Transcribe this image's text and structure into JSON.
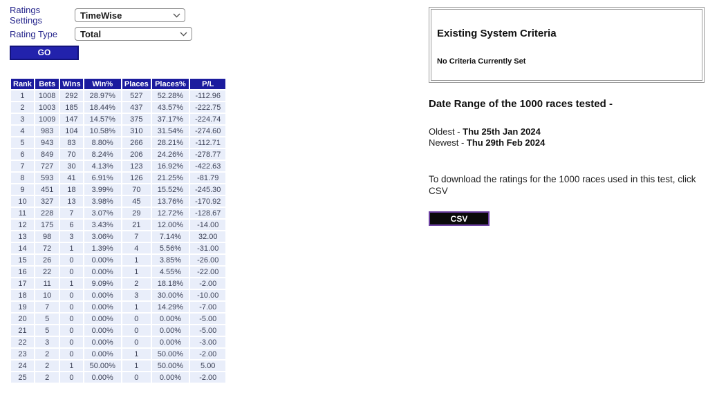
{
  "controls": {
    "ratings_settings_label": "Ratings Settings",
    "ratings_settings_value": "TimeWise",
    "rating_type_label": "Rating Type",
    "rating_type_value": "Total",
    "go_label": "GO"
  },
  "table": {
    "headers": [
      "Rank",
      "Bets",
      "Wins",
      "Win%",
      "Places",
      "Places%",
      "P/L"
    ],
    "rows": [
      [
        "1",
        "1008",
        "292",
        "28.97%",
        "527",
        "52.28%",
        "-112.96"
      ],
      [
        "2",
        "1003",
        "185",
        "18.44%",
        "437",
        "43.57%",
        "-222.75"
      ],
      [
        "3",
        "1009",
        "147",
        "14.57%",
        "375",
        "37.17%",
        "-224.74"
      ],
      [
        "4",
        "983",
        "104",
        "10.58%",
        "310",
        "31.54%",
        "-274.60"
      ],
      [
        "5",
        "943",
        "83",
        "8.80%",
        "266",
        "28.21%",
        "-112.71"
      ],
      [
        "6",
        "849",
        "70",
        "8.24%",
        "206",
        "24.26%",
        "-278.77"
      ],
      [
        "7",
        "727",
        "30",
        "4.13%",
        "123",
        "16.92%",
        "-422.63"
      ],
      [
        "8",
        "593",
        "41",
        "6.91%",
        "126",
        "21.25%",
        "-81.79"
      ],
      [
        "9",
        "451",
        "18",
        "3.99%",
        "70",
        "15.52%",
        "-245.30"
      ],
      [
        "10",
        "327",
        "13",
        "3.98%",
        "45",
        "13.76%",
        "-170.92"
      ],
      [
        "11",
        "228",
        "7",
        "3.07%",
        "29",
        "12.72%",
        "-128.67"
      ],
      [
        "12",
        "175",
        "6",
        "3.43%",
        "21",
        "12.00%",
        "-14.00"
      ],
      [
        "13",
        "98",
        "3",
        "3.06%",
        "7",
        "7.14%",
        "32.00"
      ],
      [
        "14",
        "72",
        "1",
        "1.39%",
        "4",
        "5.56%",
        "-31.00"
      ],
      [
        "15",
        "26",
        "0",
        "0.00%",
        "1",
        "3.85%",
        "-26.00"
      ],
      [
        "16",
        "22",
        "0",
        "0.00%",
        "1",
        "4.55%",
        "-22.00"
      ],
      [
        "17",
        "11",
        "1",
        "9.09%",
        "2",
        "18.18%",
        "-2.00"
      ],
      [
        "18",
        "10",
        "0",
        "0.00%",
        "3",
        "30.00%",
        "-10.00"
      ],
      [
        "19",
        "7",
        "0",
        "0.00%",
        "1",
        "14.29%",
        "-7.00"
      ],
      [
        "20",
        "5",
        "0",
        "0.00%",
        "0",
        "0.00%",
        "-5.00"
      ],
      [
        "21",
        "5",
        "0",
        "0.00%",
        "0",
        "0.00%",
        "-5.00"
      ],
      [
        "22",
        "3",
        "0",
        "0.00%",
        "0",
        "0.00%",
        "-3.00"
      ],
      [
        "23",
        "2",
        "0",
        "0.00%",
        "1",
        "50.00%",
        "-2.00"
      ],
      [
        "24",
        "2",
        "1",
        "50.00%",
        "1",
        "50.00%",
        "5.00"
      ],
      [
        "25",
        "2",
        "0",
        "0.00%",
        "0",
        "0.00%",
        "-2.00"
      ]
    ]
  },
  "panel": {
    "criteria_title": "Existing System Criteria",
    "criteria_body": "No Criteria Currently Set",
    "date_range_title": "Date Range of the 1000 races tested -",
    "oldest_label": "Oldest - ",
    "oldest_value": "Thu 25th Jan 2024",
    "newest_label": "Newest - ",
    "newest_value": "Thu 29th Feb 2024",
    "download_text": "To download the ratings for the 1000 races used in this test, click CSV",
    "csv_label": "CSV"
  },
  "colors": {
    "table_header_navy": "#1c1c9e",
    "go_button_navy": "#2222ac",
    "row_background": "#e9eefa",
    "row_text": "#3c4156",
    "label_navy": "#26268c",
    "csv_button_bg": "#0a0a0a",
    "csv_border_purple": "#6b3fa0",
    "box_border_gray": "#9a9a9a"
  }
}
